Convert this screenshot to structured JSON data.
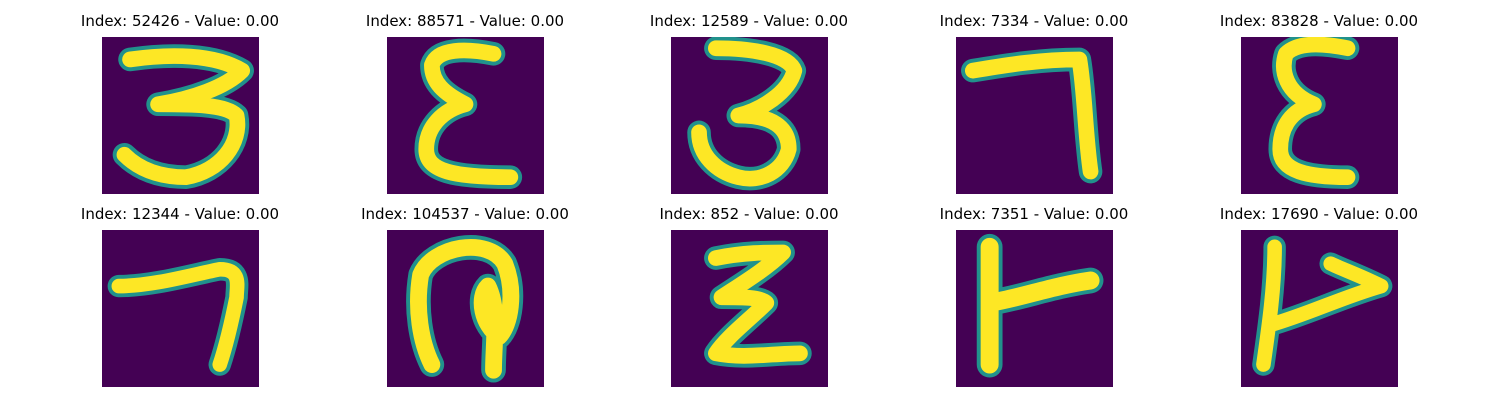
{
  "figure": {
    "panels": [
      {
        "title": "Index: 52426 - Value: 0.00",
        "glyph": "3-like",
        "colormap": "viridis"
      },
      {
        "title": "Index: 88571 - Value: 0.00",
        "glyph": "epsilon-like"
      },
      {
        "title": "Index: 12589 - Value: 0.00",
        "glyph": "3-like"
      },
      {
        "title": "Index: 7334 - Value: 0.00",
        "glyph": "7-like"
      },
      {
        "title": "Index: 83828 - Value: 0.00",
        "glyph": "epsilon-like"
      },
      {
        "title": "Index: 12344 - Value: 0.00",
        "glyph": "7-like"
      },
      {
        "title": "Index: 104537 - Value: 0.00",
        "glyph": "loop-like"
      },
      {
        "title": "Index: 852 - Value: 0.00",
        "glyph": "z-like"
      },
      {
        "title": "Index: 7351 - Value: 0.00",
        "glyph": "flag-like"
      },
      {
        "title": "Index: 17690 - Value: 0.00",
        "glyph": "flag-like"
      }
    ],
    "colors": {
      "background": "#440154",
      "stroke": "#fde725",
      "edge": "#21918c"
    }
  }
}
